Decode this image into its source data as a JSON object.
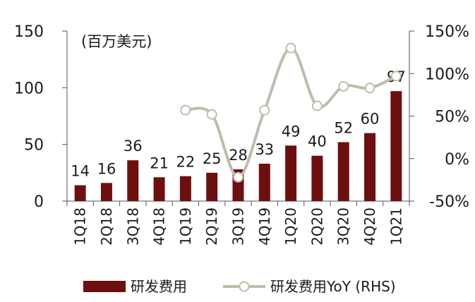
{
  "chart_data": {
    "type": "bar",
    "title": "",
    "unit_label": "(百万美元)",
    "categories": [
      "1Q18",
      "2Q18",
      "3Q18",
      "4Q18",
      "1Q19",
      "2Q19",
      "3Q19",
      "4Q19",
      "1Q20",
      "2Q20",
      "3Q20",
      "4Q20",
      "1Q21"
    ],
    "series": [
      {
        "name": "研发费用",
        "type": "bar",
        "axis": "left",
        "color": "#6e0f0f",
        "values": [
          14,
          16,
          36,
          21,
          22,
          25,
          28,
          33,
          49,
          40,
          52,
          60,
          97
        ]
      },
      {
        "name": "研发费用YoY (RHS)",
        "type": "line",
        "axis": "right",
        "color": "#bfbcac",
        "marker_fill": "#ffffff",
        "values": [
          null,
          null,
          null,
          null,
          57,
          52,
          -22,
          57,
          130,
          62,
          85,
          83,
          97
        ]
      }
    ],
    "left_axis": {
      "min": 0,
      "max": 150,
      "ticks": [
        0,
        50,
        100,
        150
      ],
      "tick_labels": [
        "0",
        "50",
        "100",
        "150"
      ]
    },
    "right_axis": {
      "min": -50,
      "max": 150,
      "ticks": [
        -50,
        0,
        50,
        100,
        150
      ],
      "tick_labels": [
        "-50%",
        "0%",
        "50%",
        "100%",
        "150%"
      ]
    },
    "grid": false,
    "legend_position": "bottom"
  }
}
